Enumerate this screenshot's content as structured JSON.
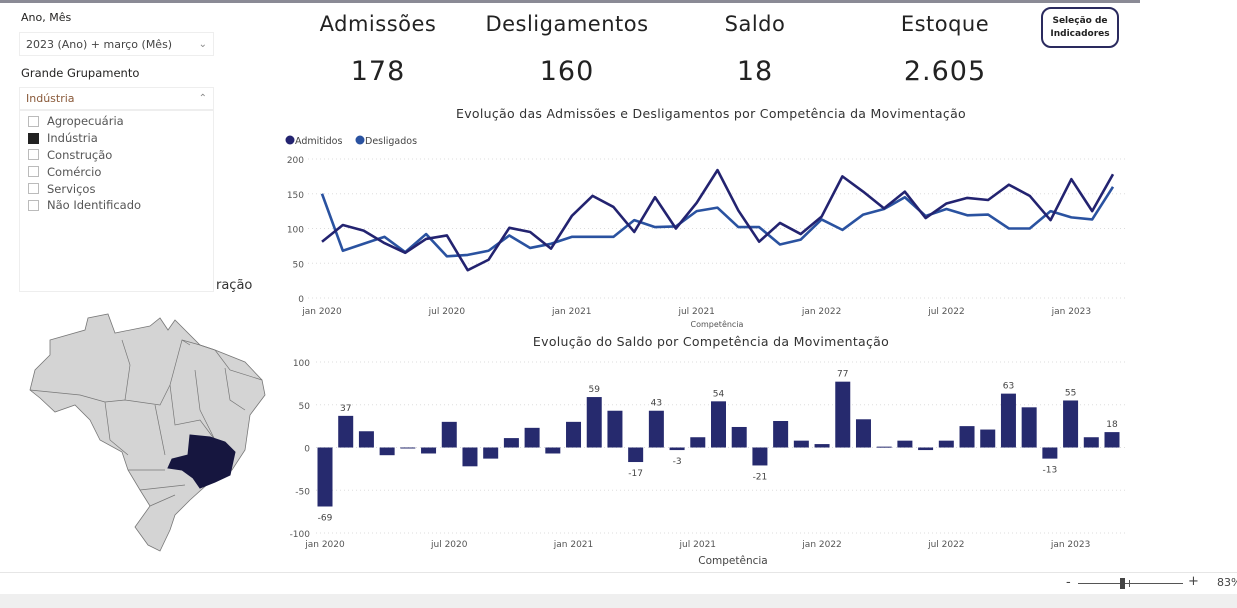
{
  "filters": {
    "period_label": "Ano, Mês",
    "period_value": "2023 (Ano) + março (Mês)",
    "group_label": "Grande Grupamento",
    "group_value": "Indústria",
    "group_options": [
      {
        "label": "Agropecuária",
        "checked": false
      },
      {
        "label": "Indústria",
        "checked": true
      },
      {
        "label": "Construção",
        "checked": false
      },
      {
        "label": "Comércio",
        "checked": false
      },
      {
        "label": "Serviços",
        "checked": false
      },
      {
        "label": "Não Identificado",
        "checked": false
      }
    ]
  },
  "map": {
    "title_fragment": "ração",
    "highlight_color": "#16163f",
    "base_color": "#d4d4d4"
  },
  "kpis": [
    {
      "label": "Admissões",
      "value": "178"
    },
    {
      "label": "Desligamentos",
      "value": "160"
    },
    {
      "label": "Saldo",
      "value": "18"
    },
    {
      "label": "Estoque",
      "value": "2.605"
    }
  ],
  "selection_button": {
    "line1": "Seleção de",
    "line2": "Indicadores"
  },
  "statusbar": {
    "zoom_minus": "-",
    "zoom_plus": "+",
    "zoom_level": "83%",
    "zoom_fraction": 0.4
  },
  "chart_data": [
    {
      "type": "line",
      "title": "Evolução das Admissões e Desligamentos por Competência da Movimentação",
      "xlabel": "Competência",
      "ylabel": "",
      "ylim": [
        0,
        200
      ],
      "yticks": [
        0,
        50,
        100,
        150,
        200
      ],
      "xtick_labels": [
        "jan 2020",
        "jul 2020",
        "jan 2021",
        "jul 2021",
        "jan 2022",
        "jul 2022",
        "jan 2023"
      ],
      "xtick_index": [
        0,
        6,
        12,
        18,
        24,
        30,
        36
      ],
      "legend": "top-left",
      "grid": true,
      "series": [
        {
          "name": "Admitidos",
          "color": "#232370",
          "values": [
            81,
            105,
            97,
            79,
            65,
            85,
            90,
            40,
            55,
            101,
            95,
            71,
            118,
            147,
            131,
            95,
            145,
            100,
            137,
            184,
            126,
            81,
            108,
            92,
            117,
            175,
            153,
            129,
            153,
            115,
            136,
            144,
            141,
            163,
            147,
            112,
            171,
            125,
            178
          ]
        },
        {
          "name": "Desligados",
          "color": "#2a52a0",
          "values": [
            150,
            68,
            78,
            88,
            66,
            92,
            60,
            62,
            68,
            90,
            72,
            78,
            88,
            88,
            88,
            112,
            102,
            103,
            125,
            130,
            102,
            102,
            77,
            84,
            113,
            98,
            120,
            128,
            145,
            118,
            128,
            119,
            120,
            100,
            100,
            125,
            116,
            113,
            160
          ]
        }
      ]
    },
    {
      "type": "bar",
      "title": "Evolução do Saldo por Competência da Movimentação",
      "xlabel": "Competência",
      "ylabel": "",
      "ylim": [
        -100,
        100
      ],
      "yticks": [
        -100,
        -50,
        0,
        50,
        100
      ],
      "xtick_labels": [
        "jan 2020",
        "jul 2020",
        "jan 2021",
        "jul 2021",
        "jan 2022",
        "jul 2022",
        "jan 2023"
      ],
      "xtick_index": [
        0,
        6,
        12,
        18,
        24,
        30,
        36
      ],
      "color": "#262a6e",
      "grid": true,
      "values": [
        -69,
        37,
        19,
        -9,
        -1,
        -7,
        30,
        -22,
        -13,
        11,
        23,
        -7,
        30,
        59,
        43,
        -17,
        43,
        -3,
        12,
        54,
        24,
        -21,
        31,
        8,
        4,
        77,
        33,
        1,
        8,
        -3,
        8,
        25,
        21,
        63,
        47,
        -13,
        55,
        12,
        18
      ],
      "labeled_index": [
        0,
        1,
        13,
        15,
        16,
        17,
        19,
        21,
        25,
        33,
        35,
        36,
        38
      ]
    }
  ]
}
